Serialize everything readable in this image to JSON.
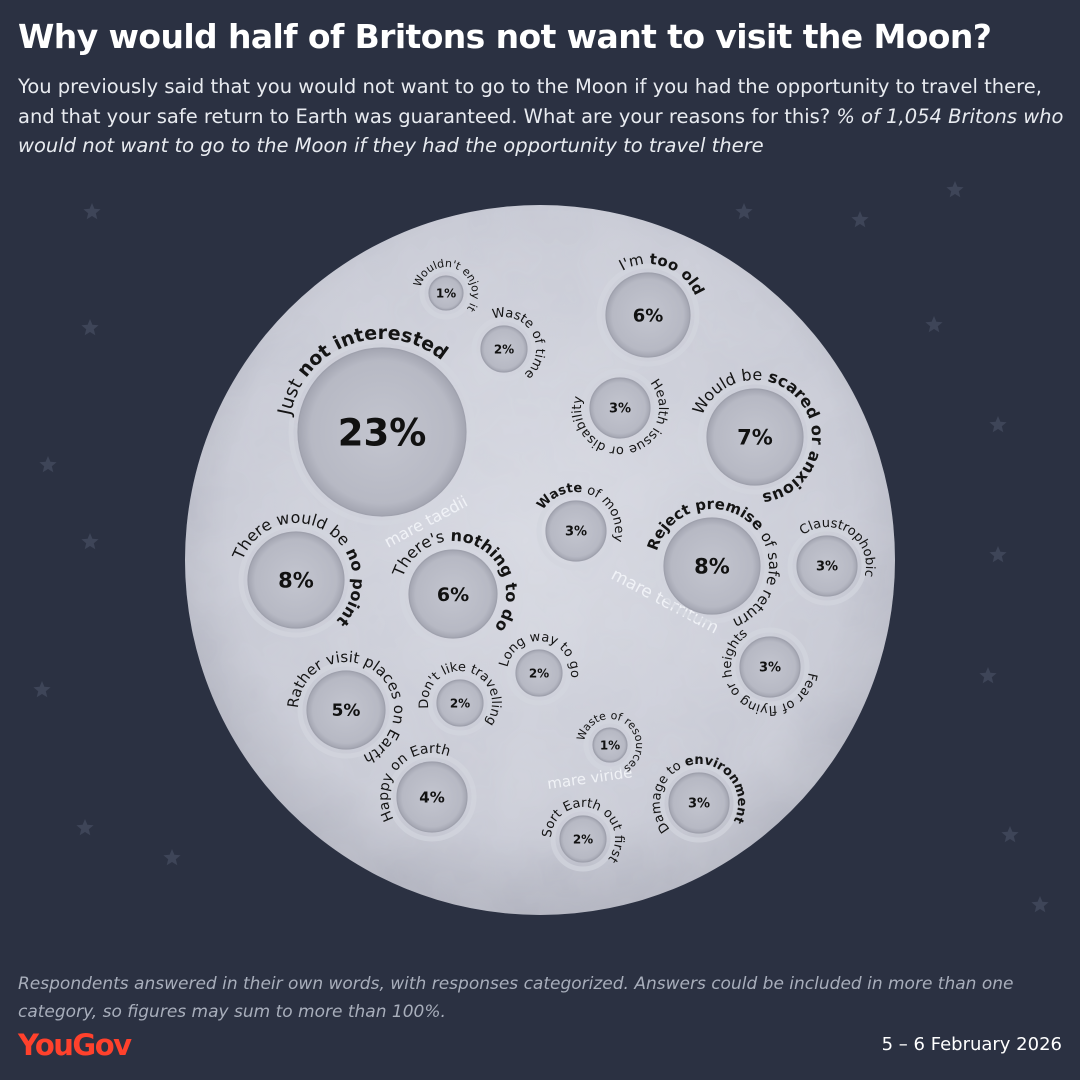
{
  "title": "Why would half of Britons not want to visit the Moon?",
  "subtitle_plain": "You previously said that you would not want to go to the Moon if you had the opportunity to travel there, and that your safe return to Earth was guaranteed. What are your reasons for this?",
  "subtitle_italic": "% of 1,054 Britons who would not want to go to the Moon if they had the opportunity to travel there",
  "footnote": "Respondents answered in their own words, with responses categorized. Answers could be included in more than one category, so figures may sum to more than 100%.",
  "brand": "YouGov",
  "date": "5 – 6 February 2026",
  "colors": {
    "background": "#2b3142",
    "moon": "#c8cad5",
    "crater": "#b2b4bf",
    "brand": "#ff412c"
  },
  "mare_labels": [
    {
      "id": "taedii",
      "text": "mare taedii"
    },
    {
      "id": "territum",
      "text": "mare territum"
    },
    {
      "id": "viride",
      "text": "mare viride"
    }
  ],
  "chart_data": {
    "type": "bubble",
    "unit": "%",
    "items": [
      {
        "label": "Just not interested",
        "bold": "not interested",
        "value": 23
      },
      {
        "label": "Would be scared or anxious",
        "bold": "scared or anxious",
        "value": 7
      },
      {
        "label": "Reject premise of safe return",
        "bold": "Reject premise",
        "value": 8
      },
      {
        "label": "There would be no point",
        "bold": "no point",
        "value": 8
      },
      {
        "label": "There's nothing to do",
        "bold": "nothing to do",
        "value": 6
      },
      {
        "label": "I'm too old",
        "bold": "too old",
        "value": 6
      },
      {
        "label": "Rather visit places on Earth",
        "bold": "",
        "value": 5
      },
      {
        "label": "Happy on Earth",
        "bold": "",
        "value": 4
      },
      {
        "label": "Health issue or disability",
        "bold": "",
        "value": 3
      },
      {
        "label": "Waste of money",
        "bold": "Waste",
        "value": 3
      },
      {
        "label": "Claustrophobic",
        "bold": "",
        "value": 3
      },
      {
        "label": "Fear of flying or heights",
        "bold": "",
        "value": 3
      },
      {
        "label": "Damage to environment",
        "bold": "environment",
        "value": 3
      },
      {
        "label": "Waste of time",
        "bold": "",
        "value": 2
      },
      {
        "label": "Don't like travelling",
        "bold": "",
        "value": 2
      },
      {
        "label": "Long way to go",
        "bold": "",
        "value": 2
      },
      {
        "label": "Sort Earth out first",
        "bold": "",
        "value": 2
      },
      {
        "label": "Wouldn't enjoy it",
        "bold": "",
        "value": 1
      },
      {
        "label": "Waste of resources",
        "bold": "",
        "value": 1
      }
    ]
  }
}
